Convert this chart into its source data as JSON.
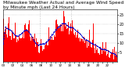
{
  "title": "Milwaukee Weather Actual and Average Wind Speed by Minute mph (Last 24 Hours)",
  "title_fontsize": 4.2,
  "background_color": "#ffffff",
  "plot_bg_color": "#ffffff",
  "bar_color": "#ff0000",
  "line_color": "#0000cc",
  "grid_color": "#999999",
  "ylim": [
    0,
    28
  ],
  "yticks": [
    5,
    10,
    15,
    20,
    25
  ],
  "ytick_fontsize": 3.5,
  "xtick_fontsize": 3.0,
  "n_points": 1440,
  "n_grid_vlines": 2,
  "figsize": [
    1.6,
    0.87
  ],
  "dpi": 100,
  "avg_window": 60
}
